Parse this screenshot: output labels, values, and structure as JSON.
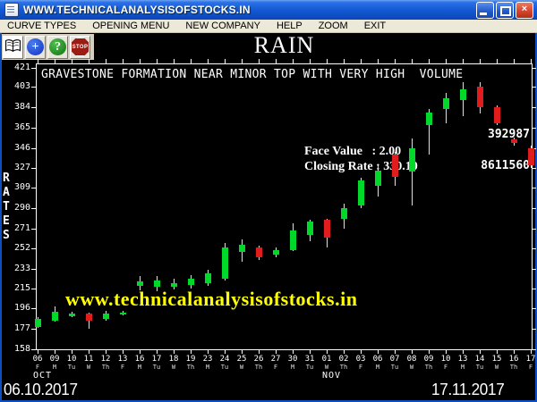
{
  "window": {
    "title": "WWW.TECHNICALANALYSISOFSTOCKS.IN"
  },
  "menu": {
    "items": [
      "CURVE TYPES",
      "OPENING MENU",
      "NEW COMPANY",
      "HELP",
      "ZOOM",
      "EXIT"
    ]
  },
  "toolbar": {
    "add_glyph": "+",
    "help_glyph": "?",
    "stop_label": "STOP"
  },
  "symbol_title": "RAIN",
  "watermark": {
    "text": "www.technicalanalysisofstocks.in",
    "color": "#ffff00"
  },
  "footer": {
    "start_date": "06.10.2017",
    "end_date": "17.11.2017"
  },
  "chart_data": {
    "type": "candlestick",
    "title": "RAIN",
    "headline": "GRAVESTONE FORMATION NEAR MINOR TOP WITH VERY HIGH  VOLUME",
    "ylabel": "RATES",
    "ylabel_letters": [
      "R",
      "A",
      "T",
      "E",
      "S"
    ],
    "y_ticks": [
      421,
      403,
      384,
      365,
      346,
      327,
      309,
      290,
      271,
      252,
      233,
      215,
      196,
      177,
      158
    ],
    "ylim": [
      158,
      421
    ],
    "grid": false,
    "annotations": {
      "face_value_line": "Face Value   : 2.00",
      "closing_rate_line": "Closing Rate : 330.10",
      "face_value": 2.0,
      "closing_rate": 330.1,
      "volume_1": "392987",
      "volume_2": "8611560"
    },
    "months": [
      {
        "label": "OCT",
        "index": 0
      },
      {
        "label": "NOV",
        "index": 17
      }
    ],
    "colors": {
      "up": "#00d82a",
      "down": "#e01c1c",
      "wick": "#e0e0e0"
    },
    "candles": [
      {
        "date": "06",
        "day": "F",
        "open": 179,
        "high": 188,
        "low": 178,
        "close": 186
      },
      {
        "date": "09",
        "day": "M",
        "open": 185,
        "high": 198,
        "low": 184,
        "close": 193
      },
      {
        "date": "10",
        "day": "Tu",
        "open": 189,
        "high": 193,
        "low": 188,
        "close": 191
      },
      {
        "date": "11",
        "day": "W",
        "open": 191,
        "high": 192,
        "low": 177,
        "close": 185
      },
      {
        "date": "12",
        "day": "Th",
        "open": 186,
        "high": 194,
        "low": 185,
        "close": 191
      },
      {
        "date": "13",
        "day": "F",
        "open": 191,
        "high": 194,
        "low": 190,
        "close": 192
      },
      {
        "date": "16",
        "day": "M",
        "open": 217,
        "high": 226,
        "low": 213,
        "close": 221
      },
      {
        "date": "17",
        "day": "Tu",
        "open": 216,
        "high": 226,
        "low": 212,
        "close": 222
      },
      {
        "date": "18",
        "day": "W",
        "open": 216,
        "high": 224,
        "low": 214,
        "close": 220
      },
      {
        "date": "19",
        "day": "Th",
        "open": 218,
        "high": 227,
        "low": 215,
        "close": 224
      },
      {
        "date": "23",
        "day": "M",
        "open": 220,
        "high": 232,
        "low": 217,
        "close": 229
      },
      {
        "date": "24",
        "day": "Tu",
        "open": 224,
        "high": 257,
        "low": 222,
        "close": 253
      },
      {
        "date": "25",
        "day": "W",
        "open": 249,
        "high": 261,
        "low": 240,
        "close": 256
      },
      {
        "date": "26",
        "day": "Th",
        "open": 253,
        "high": 255,
        "low": 241,
        "close": 244
      },
      {
        "date": "27",
        "day": "F",
        "open": 246,
        "high": 253,
        "low": 244,
        "close": 251
      },
      {
        "date": "30",
        "day": "M",
        "open": 251,
        "high": 276,
        "low": 250,
        "close": 269
      },
      {
        "date": "31",
        "day": "Tu",
        "open": 265,
        "high": 279,
        "low": 259,
        "close": 277
      },
      {
        "date": "01",
        "day": "W",
        "open": 279,
        "high": 280,
        "low": 253,
        "close": 262
      },
      {
        "date": "02",
        "day": "Th",
        "open": 280,
        "high": 294,
        "low": 271,
        "close": 290
      },
      {
        "date": "03",
        "day": "F",
        "open": 292,
        "high": 318,
        "low": 290,
        "close": 316
      },
      {
        "date": "06",
        "day": "M",
        "open": 311,
        "high": 330,
        "low": 301,
        "close": 325
      },
      {
        "date": "07",
        "day": "Tu",
        "open": 340,
        "high": 342,
        "low": 311,
        "close": 319
      },
      {
        "date": "08",
        "day": "W",
        "open": 324,
        "high": 355,
        "low": 292,
        "close": 346
      },
      {
        "date": "09",
        "day": "Th",
        "open": 367,
        "high": 382,
        "low": 340,
        "close": 379
      },
      {
        "date": "10",
        "day": "F",
        "open": 382,
        "high": 397,
        "low": 369,
        "close": 392
      },
      {
        "date": "13",
        "day": "M",
        "open": 391,
        "high": 407,
        "low": 376,
        "close": 401
      },
      {
        "date": "14",
        "day": "Tu",
        "open": 403,
        "high": 407,
        "low": 378,
        "close": 384
      },
      {
        "date": "15",
        "day": "W",
        "open": 384,
        "high": 386,
        "low": 367,
        "close": 369
      },
      {
        "date": "16",
        "day": "Th",
        "open": 354,
        "high": 356,
        "low": 348,
        "close": 351
      },
      {
        "date": "17",
        "day": "F",
        "open": 346,
        "high": 348,
        "low": 327,
        "close": 330
      }
    ]
  }
}
